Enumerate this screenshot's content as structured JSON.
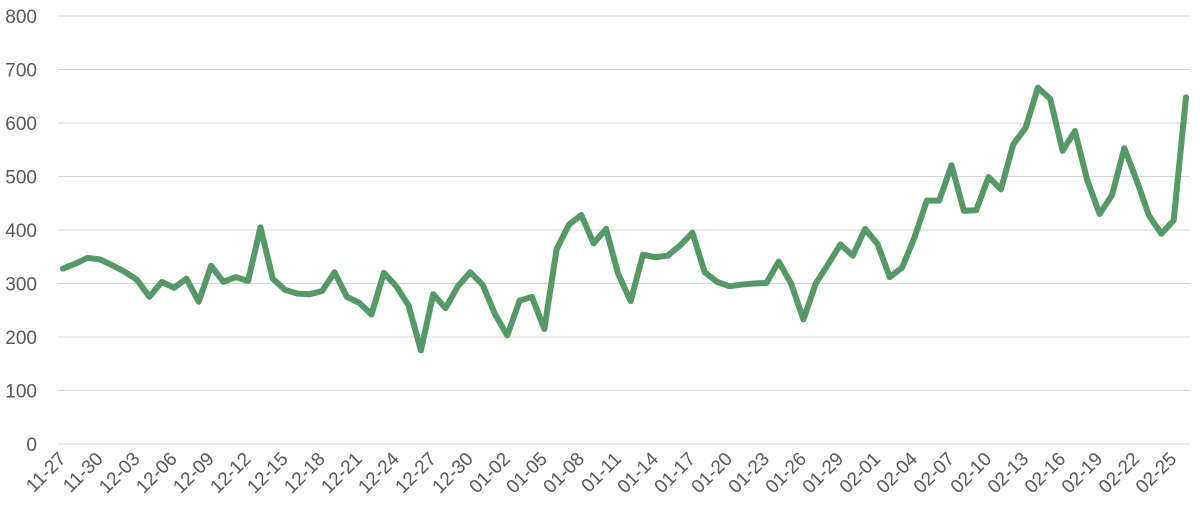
{
  "chart_data": {
    "type": "line",
    "title": "",
    "xlabel": "",
    "ylabel": "",
    "ylim": [
      0,
      800
    ],
    "yticks": [
      0,
      100,
      200,
      300,
      400,
      500,
      600,
      700,
      800
    ],
    "grid": true,
    "legend": "none",
    "line_color": "#559966",
    "x": [
      "11-27",
      "11-28",
      "11-29",
      "11-30",
      "12-01",
      "12-02",
      "12-03",
      "12-04",
      "12-05",
      "12-06",
      "12-07",
      "12-08",
      "12-09",
      "12-10",
      "12-11",
      "12-12",
      "12-13",
      "12-14",
      "12-15",
      "12-16",
      "12-17",
      "12-18",
      "12-19",
      "12-20",
      "12-21",
      "12-22",
      "12-23",
      "12-24",
      "12-25",
      "12-26",
      "12-27",
      "12-28",
      "12-29",
      "12-30",
      "12-31",
      "01-01",
      "01-02",
      "01-03",
      "01-04",
      "01-05",
      "01-06",
      "01-07",
      "01-08",
      "01-09",
      "01-10",
      "01-11",
      "01-12",
      "01-13",
      "01-14",
      "01-15",
      "01-16",
      "01-17",
      "01-18",
      "01-19",
      "01-20",
      "01-21",
      "01-22",
      "01-23",
      "01-24",
      "01-25",
      "01-26",
      "01-27",
      "01-28",
      "01-29",
      "01-30",
      "01-31",
      "02-01",
      "02-02",
      "02-03",
      "02-04",
      "02-05",
      "02-06",
      "02-07",
      "02-08",
      "02-09",
      "02-10",
      "02-11",
      "02-12",
      "02-13",
      "02-14",
      "02-15",
      "02-16",
      "02-17",
      "02-18",
      "02-19",
      "02-20",
      "02-21",
      "02-22",
      "02-23",
      "02-24",
      "02-25",
      "02-26"
    ],
    "xtick_labels": [
      "11-27",
      "11-30",
      "12-03",
      "12-06",
      "12-09",
      "12-12",
      "12-15",
      "12-18",
      "12-21",
      "12-24",
      "12-27",
      "12-30",
      "01-02",
      "01-05",
      "01-08",
      "01-11",
      "01-14",
      "01-17",
      "01-20",
      "01-23",
      "01-26",
      "01-29",
      "02-01",
      "02-04",
      "02-07",
      "02-10",
      "02-13",
      "02-16",
      "02-19",
      "02-22",
      "02-25"
    ],
    "series": [
      {
        "name": "",
        "values": [
          328,
          337,
          348,
          345,
          334,
          322,
          307,
          275,
          303,
          292,
          309,
          266,
          333,
          303,
          312,
          305,
          405,
          309,
          288,
          281,
          280,
          286,
          321,
          275,
          264,
          242,
          320,
          295,
          259,
          175,
          280,
          254,
          295,
          321,
          298,
          243,
          203,
          268,
          275,
          215,
          364,
          410,
          428,
          375,
          402,
          317,
          267,
          354,
          349,
          352,
          371,
          395,
          321,
          303,
          295,
          298,
          300,
          301,
          341,
          300,
          233,
          300,
          336,
          373,
          352,
          402,
          374,
          312,
          330,
          386,
          455,
          455,
          521,
          436,
          437,
          499,
          476,
          560,
          591,
          666,
          645,
          548,
          585,
          493,
          430,
          465,
          553,
          493,
          427,
          393,
          418,
          648
        ]
      }
    ]
  }
}
